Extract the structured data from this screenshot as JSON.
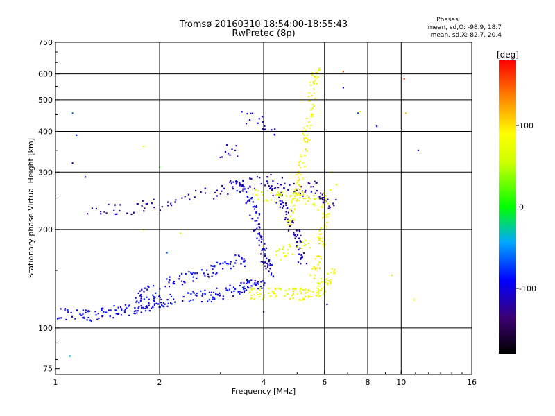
{
  "title": {
    "line1": "Tromsø 20160310 18:54:00-18:55:43",
    "line2": "RwPretec (8p)"
  },
  "phase_box": {
    "heading": "Phases",
    "line_o": "mean, sd,O: -98.9, 18.7",
    "line_x": "mean, sd,X:  82.7, 20.4"
  },
  "colorbar": {
    "label": "[deg]",
    "range": [
      -180,
      180
    ],
    "ticks": [
      {
        "value": 100,
        "label": "100"
      },
      {
        "value": 0,
        "label": "0"
      },
      {
        "value": -100,
        "label": "-100"
      }
    ]
  },
  "chart_data": {
    "type": "scatter",
    "xlabel": "Frequency [MHz]",
    "ylabel": "Stationary phase Virtual Height [km]",
    "x_scale": "log",
    "y_scale": "log",
    "xlim": [
      1,
      16
    ],
    "ylim": [
      72,
      750
    ],
    "grid": true,
    "x_ticks": [
      {
        "value": 1,
        "label": "1"
      },
      {
        "value": 2,
        "label": "2"
      },
      {
        "value": 4,
        "label": "4"
      },
      {
        "value": 6,
        "label": "6"
      },
      {
        "value": 8,
        "label": "8"
      },
      {
        "value": 10,
        "label": "10"
      },
      {
        "value": 16,
        "label": "16"
      }
    ],
    "x_grid": [
      2,
      4,
      6,
      8,
      10
    ],
    "y_ticks": [
      {
        "value": 75,
        "label": "75"
      },
      {
        "value": 100,
        "label": "100"
      },
      {
        "value": 200,
        "label": "200"
      },
      {
        "value": 300,
        "label": "300"
      },
      {
        "value": 400,
        "label": "400"
      },
      {
        "value": 500,
        "label": "500"
      },
      {
        "value": 600,
        "label": "600"
      },
      {
        "value": 750,
        "label": "750"
      }
    ],
    "y_grid": [
      100,
      200,
      300,
      400,
      500,
      600
    ],
    "color_variable": "phase [deg]",
    "color_scale": "rainbow",
    "traces": [
      {
        "mode": "O",
        "phase": -95,
        "spread": 18,
        "density": 22,
        "points": [
          [
            1.0,
            110
          ],
          [
            1.2,
            109
          ],
          [
            1.4,
            111
          ],
          [
            1.6,
            114
          ],
          [
            1.8,
            117
          ],
          [
            2.0,
            120
          ],
          [
            2.4,
            123
          ],
          [
            2.8,
            126
          ],
          [
            3.2,
            130
          ],
          [
            3.6,
            135
          ],
          [
            4.0,
            140
          ]
        ]
      },
      {
        "mode": "O",
        "phase": -100,
        "spread": 20,
        "density": 18,
        "points": [
          [
            1.7,
            125
          ],
          [
            2.0,
            133
          ],
          [
            2.4,
            142
          ],
          [
            2.8,
            150
          ],
          [
            3.2,
            158
          ],
          [
            3.5,
            162
          ]
        ]
      },
      {
        "mode": "O",
        "phase": -120,
        "spread": 15,
        "density": 10,
        "points": [
          [
            1.25,
            228
          ],
          [
            1.5,
            230
          ],
          [
            1.8,
            235
          ],
          [
            2.1,
            240
          ],
          [
            2.5,
            252
          ],
          [
            3.0,
            262
          ],
          [
            3.4,
            274
          ],
          [
            4.0,
            282
          ],
          [
            4.6,
            278
          ],
          [
            5.2,
            266
          ],
          [
            6.0,
            240
          ],
          [
            6.6,
            237
          ]
        ]
      },
      {
        "mode": "O",
        "phase": -105,
        "spread": 20,
        "density": 14,
        "points": [
          [
            3.3,
            290
          ],
          [
            3.5,
            265
          ],
          [
            3.7,
            240
          ],
          [
            3.8,
            215
          ],
          [
            3.9,
            192
          ],
          [
            4.0,
            172
          ],
          [
            4.1,
            155
          ],
          [
            4.2,
            145
          ]
        ]
      },
      {
        "mode": "O",
        "phase": -115,
        "spread": 20,
        "density": 12,
        "points": [
          [
            4.1,
            290
          ],
          [
            4.3,
            265
          ],
          [
            4.5,
            242
          ],
          [
            4.7,
            222
          ],
          [
            4.85,
            205
          ],
          [
            5.0,
            188
          ],
          [
            5.1,
            172
          ],
          [
            5.2,
            158
          ]
        ]
      },
      {
        "mode": "O",
        "phase": -100,
        "spread": 15,
        "density": 6,
        "points": [
          [
            3.5,
            440
          ],
          [
            3.8,
            432
          ],
          [
            4.0,
            420
          ],
          [
            4.3,
            400
          ]
        ]
      },
      {
        "mode": "O",
        "phase": -115,
        "spread": 15,
        "density": 5,
        "points": [
          [
            3.0,
            345
          ],
          [
            3.2,
            350
          ],
          [
            3.5,
            345
          ]
        ]
      },
      {
        "mode": "O",
        "phase": -125,
        "spread": 10,
        "density": 5,
        "points": [
          [
            5.4,
            285
          ],
          [
            5.6,
            270
          ],
          [
            5.8,
            258
          ],
          [
            5.9,
            240
          ]
        ]
      },
      {
        "mode": "X",
        "phase": 80,
        "spread": 20,
        "density": 16,
        "points": [
          [
            3.6,
            128
          ],
          [
            4.0,
            128
          ],
          [
            4.5,
            127
          ],
          [
            5.0,
            126
          ],
          [
            5.4,
            127
          ],
          [
            5.8,
            130
          ],
          [
            6.1,
            138
          ],
          [
            6.3,
            150
          ]
        ]
      },
      {
        "mode": "X",
        "phase": 85,
        "spread": 20,
        "density": 12,
        "points": [
          [
            4.7,
            205
          ],
          [
            4.85,
            230
          ],
          [
            5.0,
            260
          ],
          [
            5.1,
            290
          ],
          [
            5.2,
            330
          ],
          [
            5.3,
            380
          ],
          [
            5.4,
            430
          ],
          [
            5.5,
            490
          ],
          [
            5.6,
            560
          ],
          [
            5.7,
            640
          ]
        ]
      },
      {
        "mode": "X",
        "phase": 70,
        "spread": 20,
        "density": 10,
        "points": [
          [
            3.8,
            255
          ],
          [
            4.2,
            248
          ],
          [
            4.6,
            250
          ],
          [
            5.0,
            252
          ],
          [
            5.4,
            245
          ],
          [
            5.8,
            238
          ]
        ]
      },
      {
        "mode": "X",
        "phase": 90,
        "spread": 20,
        "density": 10,
        "points": [
          [
            5.5,
            140
          ],
          [
            5.7,
            155
          ],
          [
            5.8,
            170
          ],
          [
            5.9,
            190
          ],
          [
            6.0,
            210
          ],
          [
            6.05,
            235
          ],
          [
            6.1,
            260
          ]
        ]
      },
      {
        "mode": "X",
        "phase": 75,
        "spread": 20,
        "density": 8,
        "points": [
          [
            4.3,
            168
          ],
          [
            4.6,
            172
          ],
          [
            5.0,
            178
          ],
          [
            5.4,
            182
          ]
        ]
      }
    ],
    "stray_points": [
      [
        1.15,
        390,
        -80
      ],
      [
        1.12,
        455,
        -60
      ],
      [
        1.12,
        320,
        -110
      ],
      [
        1.1,
        82,
        -40
      ],
      [
        1.22,
        290,
        -120
      ],
      [
        1.8,
        360,
        60
      ],
      [
        2.0,
        310,
        20
      ],
      [
        2.3,
        195,
        100
      ],
      [
        6.8,
        610,
        150
      ],
      [
        6.8,
        545,
        -110
      ],
      [
        7.5,
        455,
        -70
      ],
      [
        7.6,
        460,
        80
      ],
      [
        8.5,
        415,
        -110
      ],
      [
        10.2,
        580,
        160
      ],
      [
        10.3,
        455,
        110
      ],
      [
        11.2,
        350,
        -110
      ],
      [
        9.4,
        145,
        100
      ],
      [
        10.9,
        122,
        80
      ],
      [
        6.3,
        300,
        80
      ],
      [
        6.5,
        275,
        60
      ],
      [
        4.0,
        112,
        -130
      ],
      [
        6.1,
        118,
        -120
      ],
      [
        1.8,
        200,
        50
      ],
      [
        2.1,
        170,
        -60
      ]
    ]
  }
}
